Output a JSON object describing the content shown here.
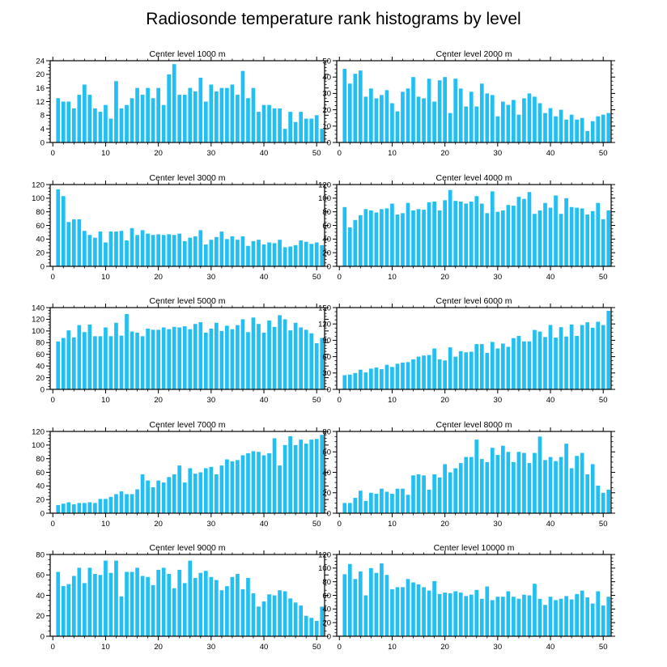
{
  "title": "Radiosonde temperature rank histograms by level",
  "bar_color": "#22bff2",
  "chart_data": [
    {
      "type": "bar",
      "title": "Center level 1000 m",
      "xlabel": "",
      "ylabel": "",
      "xlim": [
        -0.5,
        51.5
      ],
      "ylim": [
        0,
        24
      ],
      "yticks": [
        0,
        4,
        8,
        12,
        16,
        20,
        24
      ],
      "xticks": [
        0,
        10,
        20,
        30,
        40,
        50
      ],
      "categories": [
        1,
        2,
        3,
        4,
        5,
        6,
        7,
        8,
        9,
        10,
        11,
        12,
        13,
        14,
        15,
        16,
        17,
        18,
        19,
        20,
        21,
        22,
        23,
        24,
        25,
        26,
        27,
        28,
        29,
        30,
        31,
        32,
        33,
        34,
        35,
        36,
        37,
        38,
        39,
        40,
        41,
        42,
        43,
        44,
        45,
        46,
        47,
        48,
        49,
        50,
        51
      ],
      "values": [
        13,
        12,
        12,
        10,
        14,
        17,
        14,
        10,
        9,
        11,
        7,
        18,
        10,
        11,
        13,
        16,
        14,
        16,
        13,
        16,
        11,
        20,
        23,
        14,
        14,
        16,
        15,
        19,
        12,
        17,
        15,
        16,
        16,
        17,
        14,
        21,
        13,
        16,
        9,
        11,
        11,
        10,
        10,
        4,
        9,
        6,
        9,
        7,
        7,
        8,
        4
      ]
    },
    {
      "type": "bar",
      "title": "Center level 2000 m",
      "xlabel": "",
      "ylabel": "",
      "xlim": [
        -0.5,
        51.5
      ],
      "ylim": [
        0,
        50
      ],
      "yticks": [
        0,
        10,
        20,
        30,
        40,
        50
      ],
      "xticks": [
        0,
        10,
        20,
        30,
        40,
        50
      ],
      "categories": [
        1,
        2,
        3,
        4,
        5,
        6,
        7,
        8,
        9,
        10,
        11,
        12,
        13,
        14,
        15,
        16,
        17,
        18,
        19,
        20,
        21,
        22,
        23,
        24,
        25,
        26,
        27,
        28,
        29,
        30,
        31,
        32,
        33,
        34,
        35,
        36,
        37,
        38,
        39,
        40,
        41,
        42,
        43,
        44,
        45,
        46,
        47,
        48,
        49,
        50,
        51
      ],
      "values": [
        45,
        36,
        42,
        44,
        28,
        33,
        27,
        29,
        32,
        24,
        19,
        31,
        33,
        40,
        28,
        27,
        39,
        25,
        38,
        40,
        18,
        39,
        33,
        22,
        31,
        22,
        36,
        30,
        29,
        16,
        25,
        23,
        26,
        17,
        27,
        30,
        28,
        24,
        18,
        21,
        16,
        20,
        14,
        17,
        14,
        15,
        7,
        13,
        16,
        17,
        18
      ]
    },
    {
      "type": "bar",
      "title": "Center level 3000 m",
      "xlabel": "",
      "ylabel": "",
      "xlim": [
        -0.5,
        51.5
      ],
      "ylim": [
        0,
        120
      ],
      "yticks": [
        0,
        20,
        40,
        60,
        80,
        100,
        120
      ],
      "xticks": [
        0,
        10,
        20,
        30,
        40,
        50
      ],
      "categories": [
        1,
        2,
        3,
        4,
        5,
        6,
        7,
        8,
        9,
        10,
        11,
        12,
        13,
        14,
        15,
        16,
        17,
        18,
        19,
        20,
        21,
        22,
        23,
        24,
        25,
        26,
        27,
        28,
        29,
        30,
        31,
        32,
        33,
        34,
        35,
        36,
        37,
        38,
        39,
        40,
        41,
        42,
        43,
        44,
        45,
        46,
        47,
        48,
        49,
        50,
        51
      ],
      "values": [
        113,
        103,
        65,
        69,
        69,
        52,
        46,
        42,
        51,
        35,
        51,
        51,
        52,
        38,
        56,
        46,
        53,
        48,
        46,
        47,
        46,
        47,
        46,
        48,
        37,
        42,
        44,
        53,
        32,
        39,
        43,
        51,
        40,
        44,
        39,
        44,
        30,
        37,
        39,
        32,
        35,
        34,
        39,
        28,
        29,
        31,
        38,
        36,
        33,
        35,
        31
      ]
    },
    {
      "type": "bar",
      "title": "Center level 4000 m",
      "xlabel": "",
      "ylabel": "",
      "xlim": [
        -0.5,
        51.5
      ],
      "ylim": [
        0,
        120
      ],
      "yticks": [
        0,
        20,
        40,
        60,
        80,
        100,
        120
      ],
      "xticks": [
        0,
        10,
        20,
        30,
        40,
        50
      ],
      "categories": [
        1,
        2,
        3,
        4,
        5,
        6,
        7,
        8,
        9,
        10,
        11,
        12,
        13,
        14,
        15,
        16,
        17,
        18,
        19,
        20,
        21,
        22,
        23,
        24,
        25,
        26,
        27,
        28,
        29,
        30,
        31,
        32,
        33,
        34,
        35,
        36,
        37,
        38,
        39,
        40,
        41,
        42,
        43,
        44,
        45,
        46,
        47,
        48,
        49,
        50,
        51
      ],
      "values": [
        87,
        57,
        68,
        75,
        84,
        82,
        79,
        84,
        85,
        92,
        76,
        78,
        93,
        82,
        84,
        83,
        94,
        95,
        82,
        97,
        112,
        96,
        95,
        92,
        95,
        103,
        92,
        78,
        110,
        80,
        82,
        90,
        89,
        102,
        99,
        109,
        77,
        82,
        93,
        86,
        104,
        77,
        100,
        87,
        86,
        85,
        76,
        81,
        93,
        69,
        82
      ]
    },
    {
      "type": "bar",
      "title": "Center level 5000 m",
      "xlabel": "",
      "ylabel": "",
      "xlim": [
        -0.5,
        51.5
      ],
      "ylim": [
        0,
        140
      ],
      "yticks": [
        0,
        20,
        40,
        60,
        80,
        100,
        120,
        140
      ],
      "xticks": [
        0,
        10,
        20,
        30,
        40,
        50
      ],
      "categories": [
        1,
        2,
        3,
        4,
        5,
        6,
        7,
        8,
        9,
        10,
        11,
        12,
        13,
        14,
        15,
        16,
        17,
        18,
        19,
        20,
        21,
        22,
        23,
        24,
        25,
        26,
        27,
        28,
        29,
        30,
        31,
        32,
        33,
        34,
        35,
        36,
        37,
        38,
        39,
        40,
        41,
        42,
        43,
        44,
        45,
        46,
        47,
        48,
        49,
        50,
        51
      ],
      "values": [
        82,
        88,
        101,
        89,
        110,
        98,
        111,
        91,
        91,
        106,
        91,
        114,
        92,
        129,
        99,
        97,
        91,
        104,
        102,
        102,
        106,
        103,
        107,
        106,
        108,
        103,
        112,
        115,
        97,
        104,
        114,
        100,
        109,
        103,
        110,
        120,
        98,
        123,
        112,
        97,
        118,
        107,
        127,
        120,
        101,
        114,
        106,
        102,
        96,
        79,
        88
      ]
    },
    {
      "type": "bar",
      "title": "Center level 6000 m",
      "xlabel": "",
      "ylabel": "",
      "xlim": [
        -0.5,
        51.5
      ],
      "ylim": [
        0,
        150
      ],
      "yticks": [
        0,
        30,
        60,
        90,
        120,
        150
      ],
      "xticks": [
        0,
        10,
        20,
        30,
        40,
        50
      ],
      "categories": [
        1,
        2,
        3,
        4,
        5,
        6,
        7,
        8,
        9,
        10,
        11,
        12,
        13,
        14,
        15,
        16,
        17,
        18,
        19,
        20,
        21,
        22,
        23,
        24,
        25,
        26,
        27,
        28,
        29,
        30,
        31,
        32,
        33,
        34,
        35,
        36,
        37,
        38,
        39,
        40,
        41,
        42,
        43,
        44,
        45,
        46,
        47,
        48,
        49,
        50,
        51
      ],
      "values": [
        26,
        27,
        30,
        36,
        31,
        38,
        40,
        37,
        45,
        41,
        47,
        49,
        50,
        55,
        60,
        62,
        63,
        75,
        55,
        53,
        77,
        60,
        70,
        68,
        69,
        83,
        83,
        67,
        87,
        75,
        84,
        78,
        94,
        98,
        88,
        88,
        109,
        106,
        96,
        118,
        95,
        114,
        97,
        119,
        98,
        118,
        123,
        113,
        124,
        118,
        144
      ]
    },
    {
      "type": "bar",
      "title": "Center level 7000 m",
      "xlabel": "",
      "ylabel": "",
      "xlim": [
        -0.5,
        51.5
      ],
      "ylim": [
        0,
        120
      ],
      "yticks": [
        0,
        20,
        40,
        60,
        80,
        100,
        120
      ],
      "xticks": [
        0,
        10,
        20,
        30,
        40,
        50
      ],
      "categories": [
        1,
        2,
        3,
        4,
        5,
        6,
        7,
        8,
        9,
        10,
        11,
        12,
        13,
        14,
        15,
        16,
        17,
        18,
        19,
        20,
        21,
        22,
        23,
        24,
        25,
        26,
        27,
        28,
        29,
        30,
        31,
        32,
        33,
        34,
        35,
        36,
        37,
        38,
        39,
        40,
        41,
        42,
        43,
        44,
        45,
        46,
        47,
        48,
        49,
        50,
        51
      ],
      "values": [
        12,
        14,
        16,
        13,
        15,
        15,
        16,
        15,
        21,
        21,
        24,
        28,
        32,
        28,
        28,
        35,
        57,
        48,
        38,
        48,
        45,
        53,
        57,
        70,
        45,
        66,
        58,
        60,
        66,
        68,
        57,
        70,
        79,
        76,
        78,
        85,
        88,
        91,
        90,
        85,
        88,
        110,
        70,
        100,
        113,
        100,
        108,
        102,
        108,
        109,
        115
      ]
    },
    {
      "type": "bar",
      "title": "Center level 8000 m",
      "xlabel": "",
      "ylabel": "",
      "xlim": [
        -0.5,
        51.5
      ],
      "ylim": [
        0,
        80
      ],
      "yticks": [
        0,
        20,
        40,
        60,
        80
      ],
      "xticks": [
        0,
        10,
        20,
        30,
        40,
        50
      ],
      "categories": [
        1,
        2,
        3,
        4,
        5,
        6,
        7,
        8,
        9,
        10,
        11,
        12,
        13,
        14,
        15,
        16,
        17,
        18,
        19,
        20,
        21,
        22,
        23,
        24,
        25,
        26,
        27,
        28,
        29,
        30,
        31,
        32,
        33,
        34,
        35,
        36,
        37,
        38,
        39,
        40,
        41,
        42,
        43,
        44,
        45,
        46,
        47,
        48,
        49,
        50,
        51
      ],
      "values": [
        10,
        10,
        15,
        22,
        12,
        20,
        19,
        24,
        21,
        19,
        24,
        24,
        18,
        37,
        38,
        37,
        23,
        38,
        35,
        48,
        40,
        44,
        49,
        55,
        55,
        72,
        53,
        50,
        64,
        57,
        66,
        60,
        50,
        60,
        59,
        49,
        59,
        75,
        52,
        55,
        51,
        55,
        68,
        44,
        56,
        59,
        38,
        48,
        27,
        20,
        23
      ]
    },
    {
      "type": "bar",
      "title": "Center level 9000 m",
      "xlabel": "",
      "ylabel": "",
      "xlim": [
        -0.5,
        51.5
      ],
      "ylim": [
        0,
        80
      ],
      "yticks": [
        0,
        20,
        40,
        60,
        80
      ],
      "xticks": [
        0,
        10,
        20,
        30,
        40,
        50
      ],
      "categories": [
        1,
        2,
        3,
        4,
        5,
        6,
        7,
        8,
        9,
        10,
        11,
        12,
        13,
        14,
        15,
        16,
        17,
        18,
        19,
        20,
        21,
        22,
        23,
        24,
        25,
        26,
        27,
        28,
        29,
        30,
        31,
        32,
        33,
        34,
        35,
        36,
        37,
        38,
        39,
        40,
        41,
        42,
        43,
        44,
        45,
        46,
        47,
        48,
        49,
        50,
        51
      ],
      "values": [
        63,
        49,
        51,
        59,
        67,
        52,
        67,
        61,
        60,
        74,
        62,
        74,
        39,
        63,
        63,
        67,
        59,
        58,
        50,
        65,
        67,
        61,
        47,
        65,
        52,
        74,
        57,
        62,
        64,
        58,
        55,
        45,
        49,
        58,
        61,
        46,
        57,
        42,
        29,
        34,
        41,
        40,
        45,
        44,
        37,
        33,
        30,
        20,
        18,
        15,
        29
      ]
    },
    {
      "type": "bar",
      "title": "Center level 10000 m",
      "xlabel": "",
      "ylabel": "",
      "xlim": [
        -0.5,
        51.5
      ],
      "ylim": [
        0,
        120
      ],
      "yticks": [
        0,
        20,
        40,
        60,
        80,
        100,
        120
      ],
      "xticks": [
        0,
        10,
        20,
        30,
        40,
        50
      ],
      "categories": [
        1,
        2,
        3,
        4,
        5,
        6,
        7,
        8,
        9,
        10,
        11,
        12,
        13,
        14,
        15,
        16,
        17,
        18,
        19,
        20,
        21,
        22,
        23,
        24,
        25,
        26,
        27,
        28,
        29,
        30,
        31,
        32,
        33,
        34,
        35,
        36,
        37,
        38,
        39,
        40,
        41,
        42,
        43,
        44,
        45,
        46,
        47,
        48,
        49,
        50,
        51
      ],
      "values": [
        91,
        106,
        84,
        95,
        60,
        100,
        93,
        107,
        90,
        69,
        72,
        72,
        84,
        79,
        76,
        72,
        67,
        81,
        62,
        64,
        63,
        66,
        64,
        59,
        61,
        68,
        55,
        73,
        53,
        58,
        58,
        66,
        58,
        55,
        61,
        60,
        77,
        55,
        46,
        58,
        53,
        55,
        59,
        54,
        62,
        67,
        57,
        48,
        66,
        45,
        58
      ]
    }
  ]
}
